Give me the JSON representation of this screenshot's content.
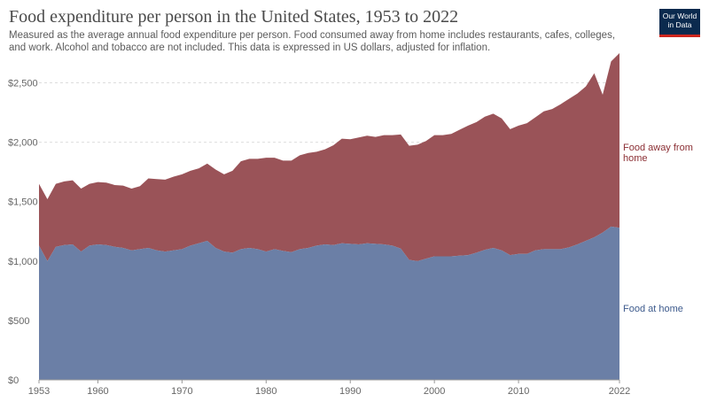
{
  "header": {
    "title": "Food expenditure per person in the United States, 1953 to 2022",
    "subtitle": "Measured as the average annual food expenditure per person. Food consumed away from home includes restaurants, cafes, colleges, and work. Alcohol and tobacco are not included. This data is expressed in US dollars, adjusted for inflation.",
    "logo_line1": "Our World",
    "logo_line2": "in Data"
  },
  "colors": {
    "away": "#9a5358",
    "home": "#6b7fa6",
    "away_label": "#8b2f34",
    "home_label": "#3d5a8c"
  },
  "chart_data": {
    "type": "area",
    "stacked": true,
    "x": [
      1953,
      1954,
      1955,
      1956,
      1957,
      1958,
      1959,
      1960,
      1961,
      1962,
      1963,
      1964,
      1965,
      1966,
      1967,
      1968,
      1969,
      1970,
      1971,
      1972,
      1973,
      1974,
      1975,
      1976,
      1977,
      1978,
      1979,
      1980,
      1981,
      1982,
      1983,
      1984,
      1985,
      1986,
      1987,
      1988,
      1989,
      1990,
      1991,
      1992,
      1993,
      1994,
      1995,
      1996,
      1997,
      1998,
      1999,
      2000,
      2001,
      2002,
      2003,
      2004,
      2005,
      2006,
      2007,
      2008,
      2009,
      2010,
      2011,
      2012,
      2013,
      2014,
      2015,
      2016,
      2017,
      2018,
      2019,
      2020,
      2021,
      2022
    ],
    "series": [
      {
        "name": "Food at home",
        "values": [
          1130,
          1000,
          1120,
          1135,
          1140,
          1080,
          1130,
          1140,
          1135,
          1120,
          1110,
          1090,
          1100,
          1110,
          1090,
          1080,
          1090,
          1100,
          1130,
          1150,
          1170,
          1110,
          1080,
          1070,
          1100,
          1110,
          1100,
          1080,
          1100,
          1085,
          1075,
          1100,
          1110,
          1130,
          1140,
          1135,
          1150,
          1145,
          1140,
          1150,
          1145,
          1140,
          1130,
          1105,
          1010,
          1000,
          1020,
          1040,
          1040,
          1040,
          1045,
          1050,
          1070,
          1095,
          1110,
          1090,
          1050,
          1060,
          1060,
          1090,
          1100,
          1100,
          1100,
          1115,
          1140,
          1170,
          1200,
          1240,
          1290,
          1280
        ]
      },
      {
        "name": "Food away from home",
        "values": [
          520,
          520,
          530,
          535,
          540,
          530,
          520,
          525,
          525,
          520,
          525,
          520,
          530,
          585,
          600,
          605,
          620,
          630,
          630,
          630,
          650,
          660,
          650,
          690,
          740,
          750,
          760,
          790,
          770,
          760,
          770,
          790,
          800,
          790,
          800,
          840,
          880,
          880,
          900,
          905,
          900,
          920,
          930,
          960,
          960,
          980,
          990,
          1020,
          1020,
          1030,
          1060,
          1090,
          1100,
          1120,
          1130,
          1110,
          1060,
          1080,
          1100,
          1120,
          1160,
          1180,
          1220,
          1250,
          1270,
          1300,
          1380,
          1160,
          1390,
          1470
        ]
      }
    ],
    "title": "Food expenditure per person in the United States, 1953 to 2022",
    "xlabel": "",
    "ylabel": "",
    "ylim": [
      0,
      2750
    ],
    "yticks": [
      0,
      500,
      1000,
      1500,
      2000,
      2500
    ],
    "ytick_labels": [
      "$0",
      "$500",
      "$1,000",
      "$1,500",
      "$2,000",
      "$2,500"
    ],
    "xticks": [
      1953,
      1960,
      1970,
      1980,
      1990,
      2000,
      2010,
      2022
    ],
    "xtick_labels": [
      "1953",
      "1960",
      "1970",
      "1980",
      "1990",
      "2000",
      "2010",
      "2022"
    ],
    "series_labels": {
      "away_line1": "Food away from",
      "away_line2": "home",
      "home": "Food at home"
    }
  }
}
